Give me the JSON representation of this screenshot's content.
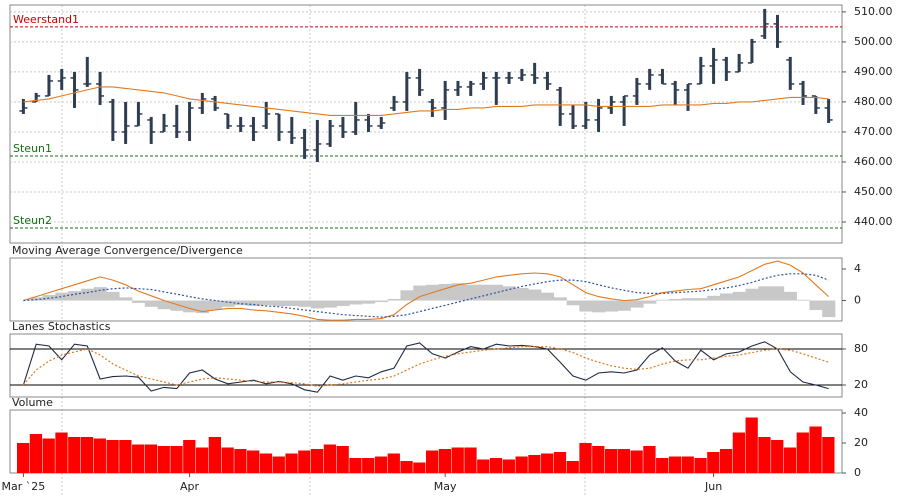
{
  "chart_data": [
    {
      "type": "ohlc",
      "categories": [
        "Mar `25",
        null,
        null,
        null,
        null,
        null,
        null,
        null,
        null,
        null,
        null,
        null,
        null,
        "Apr",
        null,
        null,
        null,
        null,
        null,
        null,
        null,
        null,
        null,
        null,
        null,
        null,
        null,
        null,
        null,
        null,
        null,
        null,
        null,
        "May",
        null,
        null,
        null,
        null,
        null,
        null,
        null,
        null,
        null,
        null,
        null,
        null,
        null,
        null,
        null,
        null,
        null,
        null,
        null,
        null,
        "Jun",
        null,
        null,
        null,
        null,
        null,
        null,
        null,
        null,
        null
      ],
      "open": [
        477,
        480,
        482,
        487,
        488,
        486,
        486,
        480,
        470,
        472,
        474,
        470,
        472,
        470,
        478,
        481,
        476,
        472,
        472,
        472,
        476,
        470,
        468,
        464,
        466,
        472,
        470,
        474,
        472,
        478,
        480,
        488,
        480,
        478,
        484,
        485,
        486,
        488,
        488,
        488,
        489,
        488,
        484,
        476,
        472,
        474,
        478,
        480,
        482,
        486,
        489,
        486,
        484,
        486,
        492,
        494,
        490,
        493,
        502,
        506,
        494,
        486,
        482,
        478
      ],
      "high": [
        481,
        483,
        489,
        491,
        490,
        495,
        490,
        481,
        480,
        480,
        475,
        476,
        479,
        480,
        483,
        482,
        476,
        475,
        475,
        480,
        476,
        475,
        471,
        474,
        474,
        475,
        480,
        476,
        475,
        482,
        490,
        491,
        481,
        487,
        487,
        487,
        490,
        490,
        490,
        491,
        493,
        490,
        485,
        479,
        480,
        481,
        482,
        482,
        488,
        491,
        491,
        487,
        486,
        495,
        498,
        495,
        496,
        501,
        511,
        509,
        495,
        487,
        482,
        481
      ],
      "low": [
        476,
        480,
        482,
        484,
        478,
        485,
        479,
        467,
        466,
        472,
        466,
        470,
        468,
        467,
        476,
        477,
        471,
        470,
        467,
        471,
        467,
        466,
        461,
        460,
        465,
        468,
        469,
        470,
        471,
        477,
        477,
        482,
        475,
        474,
        482,
        482,
        484,
        479,
        486,
        487,
        486,
        484,
        472,
        471,
        471,
        470,
        476,
        472,
        479,
        484,
        486,
        479,
        477,
        486,
        486,
        487,
        490,
        493,
        501,
        498,
        484,
        479,
        476,
        473
      ],
      "close": [
        478,
        482,
        487,
        488,
        484,
        486,
        482,
        470,
        472,
        476,
        470,
        472,
        470,
        478,
        481,
        478,
        472,
        472,
        470,
        476,
        470,
        468,
        464,
        466,
        472,
        470,
        474,
        472,
        473,
        480,
        488,
        484,
        478,
        484,
        485,
        486,
        488,
        488,
        488,
        489,
        488,
        486,
        476,
        472,
        474,
        478,
        480,
        482,
        486,
        489,
        486,
        484,
        486,
        492,
        494,
        490,
        493,
        500,
        506,
        500,
        486,
        482,
        478,
        474
      ],
      "color": "#2f3d52",
      "moving_average": {
        "color": "#e07b20",
        "values": [
          480,
          480.5,
          481,
          482,
          483,
          484,
          485,
          485,
          484.5,
          484,
          483.5,
          483,
          482,
          481,
          480.5,
          480,
          479.5,
          479,
          478.5,
          478,
          477.5,
          477,
          476.5,
          476,
          475.5,
          475.5,
          475.5,
          475.5,
          475.5,
          476,
          476.5,
          477,
          477,
          477.5,
          477.5,
          478,
          478,
          478.5,
          478.5,
          478.5,
          479,
          479,
          479,
          479,
          479,
          478.5,
          478.5,
          478.5,
          478.5,
          478.5,
          479,
          479,
          479,
          479,
          479.5,
          479.5,
          480,
          480,
          480.5,
          481,
          481.5,
          481.5,
          481.5,
          481
        ]
      },
      "levels": [
        {
          "label": "Weerstand1",
          "value": 505,
          "color": "#cc0000"
        },
        {
          "label": "Steun1",
          "value": 462,
          "color": "#107010"
        },
        {
          "label": "Steun2",
          "value": 438,
          "color": "#107010"
        }
      ],
      "ylim": [
        433,
        512.3
      ],
      "yticks": [
        {
          "value": 510,
          "label": "510.00"
        },
        {
          "value": 500,
          "label": "500.00"
        },
        {
          "value": 490,
          "label": "490.00"
        },
        {
          "value": 480,
          "label": "480.00"
        },
        {
          "value": 470,
          "label": "470.00"
        },
        {
          "value": 460,
          "label": "460.00"
        },
        {
          "value": 450,
          "label": "450.00"
        },
        {
          "value": 440,
          "label": "440.00"
        }
      ],
      "grid": true,
      "grid_color": "#c8c8c8"
    },
    {
      "type": "macd",
      "title": "Moving Average Convergence/Divergence",
      "histogram": {
        "color": "#c8c8c8",
        "values": [
          0,
          0.4,
          0.7,
          1,
          1.2,
          1.5,
          1.7,
          1.1,
          0.4,
          -0.3,
          -0.8,
          -1.1,
          -1.3,
          -1.5,
          -1.6,
          -1.2,
          -0.8,
          -0.6,
          -0.7,
          -0.6,
          -0.7,
          -0.7,
          -0.8,
          -1,
          -0.9,
          -0.7,
          -0.5,
          -0.4,
          -0.2,
          0.2,
          1.3,
          1.9,
          2,
          2.1,
          2.2,
          2,
          2,
          2,
          1.8,
          1.6,
          1.4,
          1,
          0.4,
          -0.6,
          -1.4,
          -1.5,
          -1.4,
          -1.3,
          -0.9,
          -0.4,
          0.1,
          0.2,
          0.3,
          0.3,
          0.6,
          0.9,
          1.1,
          1.5,
          1.8,
          1.8,
          1.1,
          0.1,
          -1.2,
          -2.1
        ]
      },
      "series": [
        {
          "color": "#e07b20",
          "dash": false,
          "values": [
            0,
            0.5,
            1,
            1.5,
            2,
            2.5,
            3,
            2.6,
            2,
            1.2,
            0.6,
            0,
            -0.5,
            -1,
            -1.4,
            -1.2,
            -1,
            -1,
            -1.2,
            -1.3,
            -1.5,
            -1.7,
            -2,
            -2.4,
            -2.5,
            -2.5,
            -2.4,
            -2.4,
            -2.3,
            -1.8,
            -0.5,
            0.5,
            1,
            1.5,
            2,
            2.2,
            2.6,
            3,
            3.2,
            3.4,
            3.5,
            3.4,
            3,
            2,
            1,
            0.5,
            0.2,
            0,
            0.1,
            0.5,
            1,
            1.2,
            1.4,
            1.5,
            2,
            2.5,
            3,
            3.8,
            4.6,
            5,
            4.5,
            3.5,
            2,
            0.5
          ]
        },
        {
          "color": "#3050a0",
          "dash": true,
          "values": [
            0,
            0.1,
            0.3,
            0.5,
            0.8,
            1,
            1.3,
            1.5,
            1.6,
            1.5,
            1.4,
            1.1,
            0.8,
            0.5,
            0.2,
            0,
            -0.2,
            -0.4,
            -0.5,
            -0.7,
            -0.8,
            -1,
            -1.2,
            -1.4,
            -1.6,
            -1.8,
            -1.9,
            -2,
            -2.1,
            -2,
            -1.8,
            -1.4,
            -1,
            -0.6,
            -0.2,
            0.2,
            0.6,
            1,
            1.4,
            1.8,
            2.1,
            2.4,
            2.6,
            2.6,
            2.4,
            2,
            1.6,
            1.3,
            1,
            0.9,
            0.9,
            1,
            1.1,
            1.2,
            1.4,
            1.6,
            1.9,
            2.3,
            2.8,
            3.2,
            3.4,
            3.4,
            3.2,
            2.6
          ]
        }
      ],
      "ylim": [
        -2.6,
        5.4
      ],
      "yticks": [
        4,
        0
      ],
      "grid": false
    },
    {
      "type": "line",
      "title": "Lanes Stochastics",
      "series": [
        {
          "color": "#1f2a44",
          "dash": false,
          "values": [
            20,
            88,
            85,
            62,
            88,
            85,
            30,
            34,
            35,
            33,
            10,
            16,
            14,
            40,
            45,
            30,
            22,
            25,
            28,
            22,
            26,
            22,
            12,
            8,
            35,
            28,
            35,
            32,
            42,
            48,
            85,
            90,
            72,
            65,
            75,
            84,
            80,
            88,
            85,
            86,
            84,
            80,
            58,
            35,
            28,
            40,
            42,
            40,
            45,
            70,
            82,
            60,
            48,
            78,
            62,
            72,
            75,
            85,
            92,
            80,
            42,
            25,
            20,
            14
          ]
        },
        {
          "color": "#e07b20",
          "dash": true,
          "values": [
            20,
            45,
            60,
            70,
            75,
            80,
            70,
            55,
            45,
            35,
            30,
            25,
            20,
            25,
            30,
            32,
            30,
            28,
            26,
            25,
            25,
            24,
            22,
            18,
            20,
            22,
            25,
            28,
            30,
            35,
            45,
            55,
            62,
            68,
            72,
            75,
            78,
            80,
            82,
            84,
            84,
            84,
            80,
            74,
            65,
            58,
            52,
            48,
            46,
            48,
            55,
            60,
            62,
            62,
            65,
            68,
            70,
            74,
            78,
            80,
            78,
            72,
            65,
            58
          ]
        }
      ],
      "ylim": [
        0,
        105
      ],
      "yticks": [
        80,
        20
      ],
      "grid": true,
      "grid_color": "#000000"
    },
    {
      "type": "bar",
      "title": "Volume",
      "color": "#ff0000",
      "values": [
        20,
        26,
        23,
        27,
        24,
        24,
        23,
        22,
        22,
        19,
        19,
        18,
        18,
        22,
        17,
        24,
        17,
        16,
        15,
        13,
        11,
        13,
        15,
        16,
        19,
        18,
        10,
        10,
        11,
        13,
        8,
        7,
        15,
        16,
        17,
        17,
        9,
        10,
        9,
        11,
        12,
        13,
        14,
        8,
        20,
        18,
        16,
        16,
        15,
        18,
        10,
        11,
        11,
        10,
        14,
        16,
        27,
        37,
        24,
        22,
        17,
        27,
        31,
        24
      ],
      "ylim": [
        0,
        42
      ],
      "yticks": [
        40,
        20,
        0
      ],
      "grid": false
    }
  ]
}
